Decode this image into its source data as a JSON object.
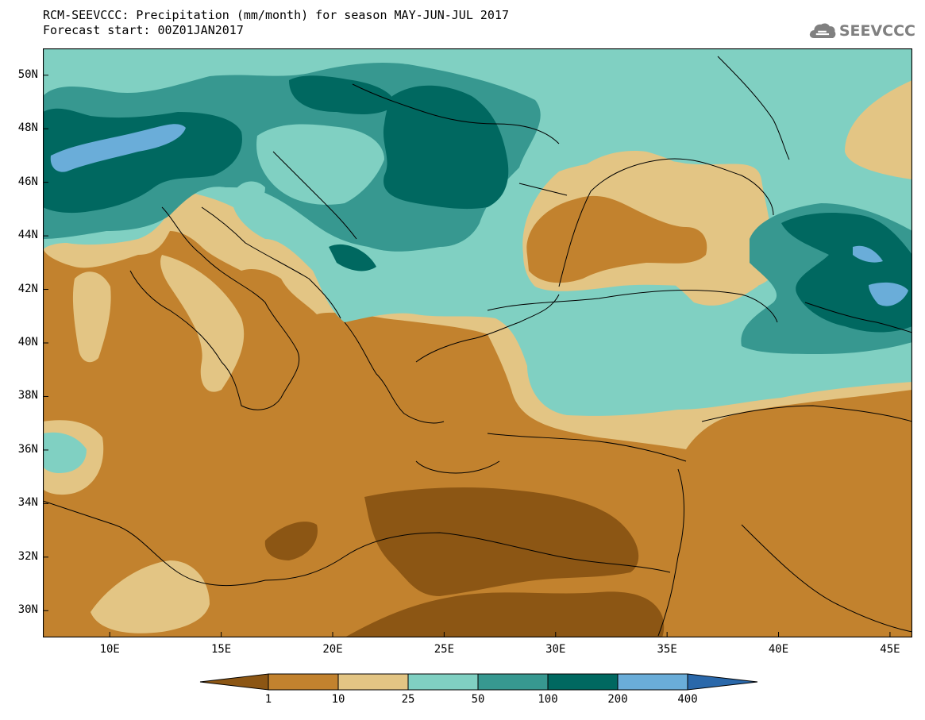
{
  "title": {
    "line1": "RCM-SEEVCCC: Precipitation (mm/month) for season MAY-JUN-JUL 2017",
    "line2": "Forecast start: 00Z01JAN2017"
  },
  "logo": {
    "text": "SEEVCCC",
    "icon": "cloud-icon",
    "color": "#808080"
  },
  "map": {
    "lon_range": [
      7,
      46
    ],
    "lat_range": [
      29,
      51
    ],
    "lat_ticks": [
      {
        "value": 50,
        "label": "50N"
      },
      {
        "value": 48,
        "label": "48N"
      },
      {
        "value": 46,
        "label": "46N"
      },
      {
        "value": 44,
        "label": "44N"
      },
      {
        "value": 42,
        "label": "42N"
      },
      {
        "value": 40,
        "label": "40N"
      },
      {
        "value": 38,
        "label": "38N"
      },
      {
        "value": 36,
        "label": "36N"
      },
      {
        "value": 34,
        "label": "34N"
      },
      {
        "value": 32,
        "label": "32N"
      },
      {
        "value": 30,
        "label": "30N"
      }
    ],
    "lon_ticks": [
      {
        "value": 10,
        "label": "10E"
      },
      {
        "value": 15,
        "label": "15E"
      },
      {
        "value": 20,
        "label": "20E"
      },
      {
        "value": 25,
        "label": "25E"
      },
      {
        "value": 30,
        "label": "30E"
      },
      {
        "value": 35,
        "label": "35E"
      },
      {
        "value": 40,
        "label": "40E"
      },
      {
        "value": 45,
        "label": "45E"
      }
    ]
  },
  "legend": {
    "labels": [
      "1",
      "10",
      "25",
      "50",
      "100",
      "200",
      "400"
    ],
    "colors": [
      "#8c5614",
      "#c2822e",
      "#e3c584",
      "#80d0c2",
      "#379890",
      "#006860",
      "#6aadd9",
      "#2a68aa"
    ]
  }
}
